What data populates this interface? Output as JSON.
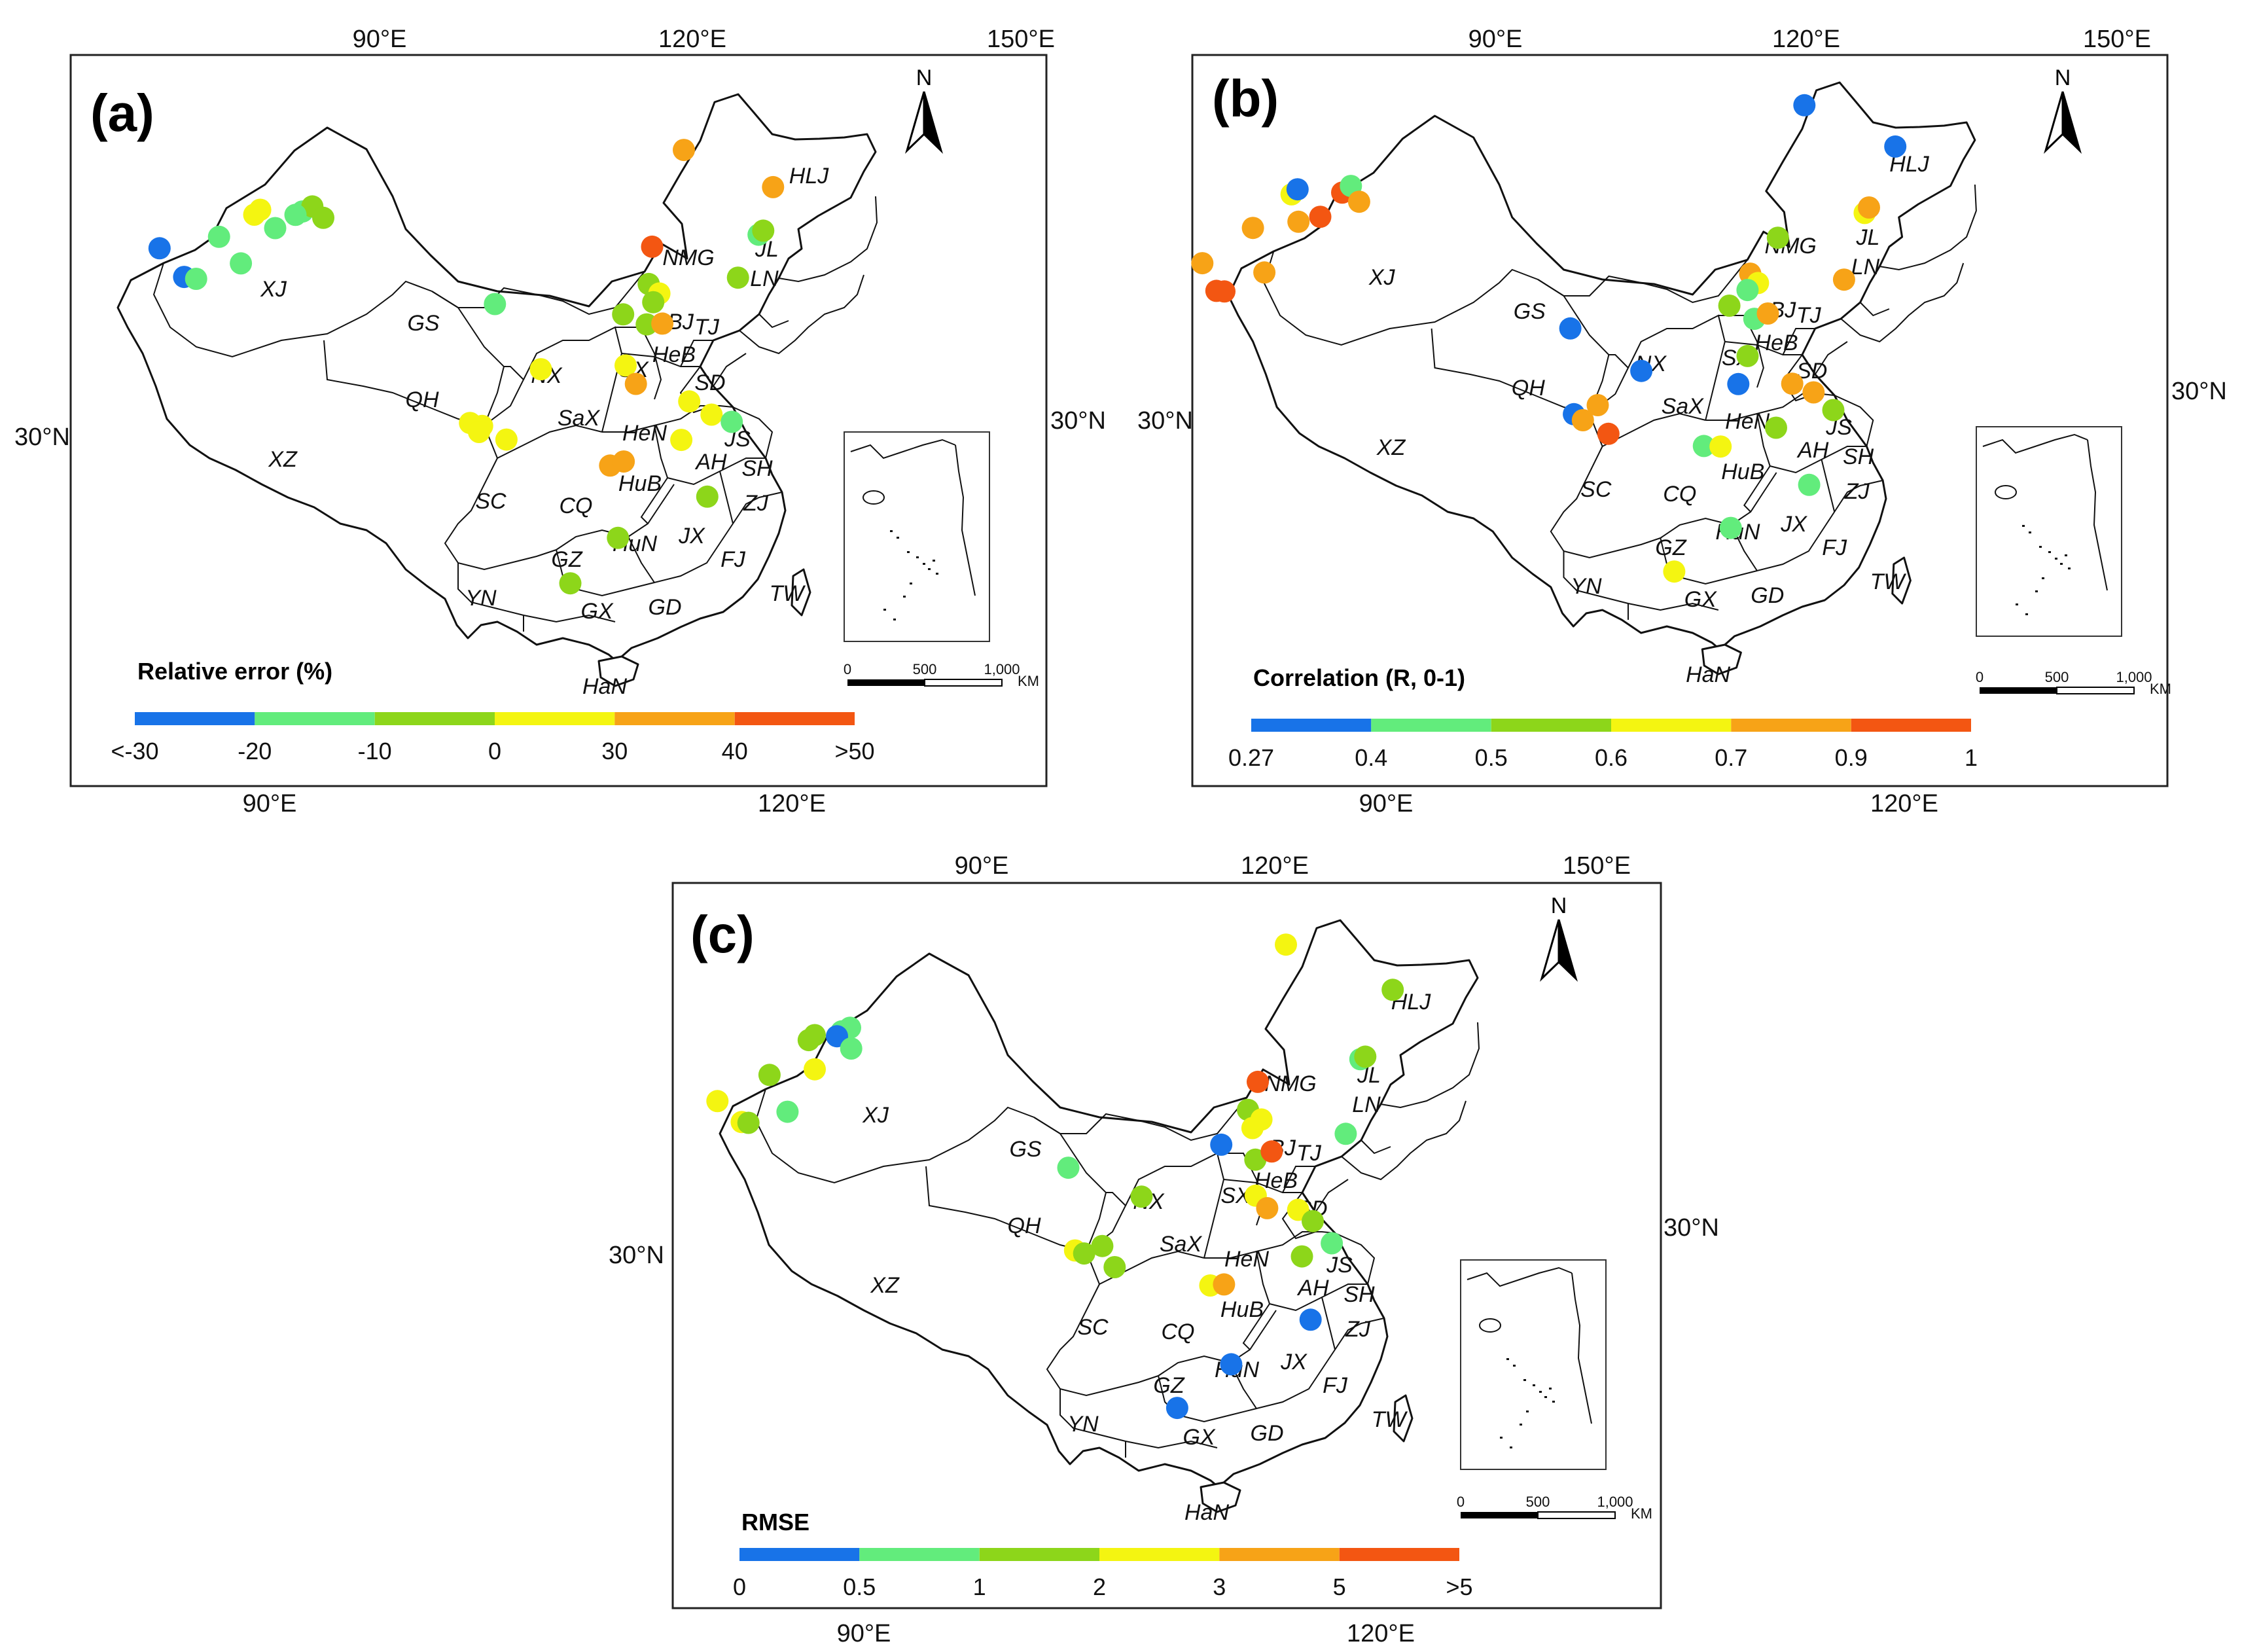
{
  "panels": [
    {
      "id": "a",
      "label": "(a)",
      "top_ticks": [
        "90°E",
        "120°E",
        "150°E"
      ],
      "bottom_ticks": [
        "90°E",
        "120°E"
      ],
      "lat_left": "30°N",
      "lat_right": "30°N",
      "north": "N",
      "legend_title": "Relative error (%)",
      "legend_ticks": [
        "<-30",
        "-20",
        "-10",
        "0",
        "30",
        "40",
        ">50"
      ],
      "scale_labels": [
        "0",
        "500",
        "1,000",
        "KM"
      ],
      "provinces": [
        "XJ",
        "GS",
        "NX",
        "QH",
        "XZ",
        "NMG",
        "HLJ",
        "JL",
        "LN",
        "BJ",
        "TJ",
        "HeB",
        "SX",
        "SD",
        "SaX",
        "HeN",
        "JS",
        "AH",
        "SH",
        "HuB",
        "SC",
        "CQ",
        "ZJ",
        "JX",
        "HuN",
        "GZ",
        "FJ",
        "YN",
        "GX",
        "GD",
        "TW",
        "HaN"
      ],
      "stations": [
        {
          "lon": 81.2,
          "lat": 43.3,
          "class": 0
        },
        {
          "lon": 83.4,
          "lat": 41.2,
          "class": 0
        },
        {
          "lon": 84.3,
          "lat": 41.0,
          "class": 1
        },
        {
          "lon": 85.5,
          "lat": 43.7,
          "class": 1
        },
        {
          "lon": 87.4,
          "lat": 41.8,
          "class": 1
        },
        {
          "lon": 87.9,
          "lat": 45.0,
          "class": 3
        },
        {
          "lon": 88.3,
          "lat": 45.3,
          "class": 3
        },
        {
          "lon": 89.6,
          "lat": 44.0,
          "class": 1
        },
        {
          "lon": 91.5,
          "lat": 45.0,
          "class": 1
        },
        {
          "lon": 92.2,
          "lat": 45.3,
          "class": 2
        },
        {
          "lon": 93.1,
          "lat": 44.5,
          "class": 2
        },
        {
          "lon": 91.0,
          "lat": 44.8,
          "class": 1
        },
        {
          "lon": 105.8,
          "lat": 38.5,
          "class": 1
        },
        {
          "lon": 120.5,
          "lat": 49.2,
          "class": 4
        },
        {
          "lon": 127.0,
          "lat": 47.2,
          "class": 4
        },
        {
          "lon": 125.3,
          "lat": 43.9,
          "class": 1
        },
        {
          "lon": 125.7,
          "lat": 44.2,
          "class": 2
        },
        {
          "lon": 117.3,
          "lat": 42.6,
          "class": 5
        },
        {
          "lon": 116.8,
          "lat": 40.1,
          "class": 2
        },
        {
          "lon": 117.5,
          "lat": 39.5,
          "class": 3
        },
        {
          "lon": 117.0,
          "lat": 38.9,
          "class": 2
        },
        {
          "lon": 114.8,
          "lat": 38.0,
          "class": 2
        },
        {
          "lon": 116.4,
          "lat": 37.4,
          "class": 2
        },
        {
          "lon": 117.5,
          "lat": 37.5,
          "class": 4
        },
        {
          "lon": 123.3,
          "lat": 40.9,
          "class": 2
        },
        {
          "lon": 108.9,
          "lat": 34.2,
          "class": 3
        },
        {
          "lon": 114.7,
          "lat": 34.6,
          "class": 3
        },
        {
          "lon": 115.3,
          "lat": 33.4,
          "class": 4
        },
        {
          "lon": 118.8,
          "lat": 32.4,
          "class": 3
        },
        {
          "lon": 120.2,
          "lat": 31.6,
          "class": 3
        },
        {
          "lon": 121.5,
          "lat": 31.2,
          "class": 1
        },
        {
          "lon": 104.1,
          "lat": 30.6,
          "class": 3
        },
        {
          "lon": 104.9,
          "lat": 30.4,
          "class": 3
        },
        {
          "lon": 104.7,
          "lat": 30.0,
          "class": 3
        },
        {
          "lon": 106.5,
          "lat": 29.5,
          "class": 3
        },
        {
          "lon": 118.0,
          "lat": 29.8,
          "class": 3
        },
        {
          "lon": 113.2,
          "lat": 27.9,
          "class": 4
        },
        {
          "lon": 114.1,
          "lat": 28.2,
          "class": 4
        },
        {
          "lon": 119.3,
          "lat": 26.1,
          "class": 2
        },
        {
          "lon": 113.4,
          "lat": 23.1,
          "class": 2
        },
        {
          "lon": 110.3,
          "lat": 20.0,
          "class": 2
        }
      ]
    },
    {
      "id": "b",
      "label": "(b)",
      "top_ticks": [
        "90°E",
        "120°E",
        "150°E"
      ],
      "bottom_ticks": [
        "90°E",
        "120°E"
      ],
      "lat_left": "30°N",
      "lat_right": "30°N",
      "north": "N",
      "legend_title": "Correlation (R, 0-1)",
      "legend_ticks": [
        "0.27",
        "0.4",
        "0.5",
        "0.6",
        "0.7",
        "0.9",
        "1"
      ],
      "scale_labels": [
        "0",
        "500",
        "1,000",
        "KM"
      ],
      "provinces": [
        "XJ",
        "GS",
        "NX",
        "QH",
        "XZ",
        "NMG",
        "HLJ",
        "JL",
        "LN",
        "BJ",
        "TJ",
        "HeB",
        "SX",
        "SD",
        "SaX",
        "HeN",
        "JS",
        "AH",
        "SH",
        "HuB",
        "SC",
        "CQ",
        "ZJ",
        "JX",
        "HuN",
        "GZ",
        "FJ",
        "YN",
        "GX",
        "GD",
        "TW",
        "HaN"
      ],
      "stations": [
        {
          "lon": 76.5,
          "lat": 42.0,
          "class": 4
        },
        {
          "lon": 78.0,
          "lat": 40.0,
          "class": 5
        },
        {
          "lon": 78.6,
          "lat": 39.9,
          "class": 5
        },
        {
          "lon": 79.8,
          "lat": 44.0,
          "class": 4
        },
        {
          "lon": 81.3,
          "lat": 40.9,
          "class": 4
        },
        {
          "lon": 82.3,
          "lat": 46.0,
          "class": 3
        },
        {
          "lon": 82.7,
          "lat": 46.3,
          "class": 0
        },
        {
          "lon": 83.2,
          "lat": 44.1,
          "class": 4
        },
        {
          "lon": 84.8,
          "lat": 44.3,
          "class": 5
        },
        {
          "lon": 86.2,
          "lat": 45.8,
          "class": 5
        },
        {
          "lon": 86.8,
          "lat": 46.2,
          "class": 1
        },
        {
          "lon": 87.6,
          "lat": 45.1,
          "class": 4
        },
        {
          "lon": 103.7,
          "lat": 36.1,
          "class": 0
        },
        {
          "lon": 122.3,
          "lat": 51.5,
          "class": 0
        },
        {
          "lon": 129.1,
          "lat": 49.3,
          "class": 0
        },
        {
          "lon": 125.8,
          "lat": 44.6,
          "class": 3
        },
        {
          "lon": 126.2,
          "lat": 45.0,
          "class": 4
        },
        {
          "lon": 119.0,
          "lat": 42.5,
          "class": 2
        },
        {
          "lon": 116.7,
          "lat": 40.0,
          "class": 4
        },
        {
          "lon": 117.2,
          "lat": 39.4,
          "class": 3
        },
        {
          "lon": 116.4,
          "lat": 38.9,
          "class": 1
        },
        {
          "lon": 115.0,
          "lat": 37.8,
          "class": 2
        },
        {
          "lon": 116.7,
          "lat": 37.0,
          "class": 1
        },
        {
          "lon": 117.7,
          "lat": 37.4,
          "class": 4
        },
        {
          "lon": 123.5,
          "lat": 40.0,
          "class": 4
        },
        {
          "lon": 116.0,
          "lat": 34.5,
          "class": 2
        },
        {
          "lon": 108.6,
          "lat": 33.3,
          "class": 0
        },
        {
          "lon": 115.2,
          "lat": 32.6,
          "class": 0
        },
        {
          "lon": 118.9,
          "lat": 32.8,
          "class": 4
        },
        {
          "lon": 120.3,
          "lat": 32.3,
          "class": 4
        },
        {
          "lon": 121.5,
          "lat": 31.2,
          "class": 2
        },
        {
          "lon": 104.0,
          "lat": 30.4,
          "class": 0
        },
        {
          "lon": 104.6,
          "lat": 30.0,
          "class": 4
        },
        {
          "lon": 105.6,
          "lat": 31.0,
          "class": 4
        },
        {
          "lon": 106.3,
          "lat": 29.1,
          "class": 5
        },
        {
          "lon": 117.5,
          "lat": 29.8,
          "class": 2
        },
        {
          "lon": 112.6,
          "lat": 28.4,
          "class": 1
        },
        {
          "lon": 113.7,
          "lat": 28.4,
          "class": 3
        },
        {
          "lon": 119.3,
          "lat": 26.1,
          "class": 1
        },
        {
          "lon": 114.0,
          "lat": 23.0,
          "class": 1
        },
        {
          "lon": 110.3,
          "lat": 20.0,
          "class": 3
        }
      ]
    },
    {
      "id": "c",
      "label": "(c)",
      "top_ticks": [
        "90°E",
        "120°E",
        "150°E"
      ],
      "bottom_ticks": [
        "90°E",
        "120°E"
      ],
      "lat_left": "30°N",
      "lat_right": "30°N",
      "north": "N",
      "legend_title": "RMSE",
      "legend_ticks": [
        "0",
        "0.5",
        "1",
        "2",
        "3",
        "5",
        ">5"
      ],
      "scale_labels": [
        "0",
        "500",
        "1,000",
        "KM"
      ],
      "provinces": [
        "XJ",
        "GS",
        "NX",
        "QH",
        "XZ",
        "NMG",
        "HLJ",
        "JL",
        "LN",
        "BJ",
        "TJ",
        "HeB",
        "SX",
        "SD",
        "SaX",
        "HeN",
        "JS",
        "AH",
        "SH",
        "HuB",
        "SC",
        "CQ",
        "ZJ",
        "JX",
        "HuN",
        "GZ",
        "FJ",
        "YN",
        "GX",
        "GD",
        "TW",
        "HaN"
      ],
      "stations": [
        {
          "lon": 78.3,
          "lat": 41.8,
          "class": 3
        },
        {
          "lon": 80.4,
          "lat": 40.2,
          "class": 3
        },
        {
          "lon": 80.9,
          "lat": 40.1,
          "class": 2
        },
        {
          "lon": 81.8,
          "lat": 43.2,
          "class": 2
        },
        {
          "lon": 83.6,
          "lat": 40.6,
          "class": 1
        },
        {
          "lon": 84.3,
          "lat": 45.3,
          "class": 2
        },
        {
          "lon": 84.7,
          "lat": 45.6,
          "class": 2
        },
        {
          "lon": 85.1,
          "lat": 43.3,
          "class": 3
        },
        {
          "lon": 86.7,
          "lat": 45.7,
          "class": 1
        },
        {
          "lon": 87.3,
          "lat": 45.9,
          "class": 1
        },
        {
          "lon": 86.4,
          "lat": 45.4,
          "class": 0
        },
        {
          "lon": 87.6,
          "lat": 44.5,
          "class": 1
        },
        {
          "lon": 103.8,
          "lat": 36.0,
          "class": 1
        },
        {
          "lon": 120.8,
          "lat": 51.3,
          "class": 3
        },
        {
          "lon": 128.7,
          "lat": 48.9,
          "class": 2
        },
        {
          "lon": 125.3,
          "lat": 44.0,
          "class": 1
        },
        {
          "lon": 125.7,
          "lat": 44.2,
          "class": 2
        },
        {
          "lon": 117.5,
          "lat": 42.0,
          "class": 5
        },
        {
          "lon": 116.6,
          "lat": 40.1,
          "class": 2
        },
        {
          "lon": 117.5,
          "lat": 39.5,
          "class": 3
        },
        {
          "lon": 116.8,
          "lat": 38.9,
          "class": 3
        },
        {
          "lon": 114.5,
          "lat": 37.7,
          "class": 0
        },
        {
          "lon": 116.8,
          "lat": 36.8,
          "class": 2
        },
        {
          "lon": 118.0,
          "lat": 37.4,
          "class": 5
        },
        {
          "lon": 123.4,
          "lat": 38.9,
          "class": 1
        },
        {
          "lon": 108.8,
          "lat": 34.1,
          "class": 2
        },
        {
          "lon": 116.6,
          "lat": 34.4,
          "class": 3
        },
        {
          "lon": 117.3,
          "lat": 33.6,
          "class": 4
        },
        {
          "lon": 119.4,
          "lat": 33.6,
          "class": 3
        },
        {
          "lon": 120.3,
          "lat": 32.9,
          "class": 2
        },
        {
          "lon": 121.4,
          "lat": 31.5,
          "class": 1
        },
        {
          "lon": 104.3,
          "lat": 30.5,
          "class": 3
        },
        {
          "lon": 104.9,
          "lat": 30.3,
          "class": 2
        },
        {
          "lon": 106.1,
          "lat": 30.8,
          "class": 2
        },
        {
          "lon": 106.9,
          "lat": 29.4,
          "class": 2
        },
        {
          "lon": 119.3,
          "lat": 30.5,
          "class": 2
        },
        {
          "lon": 113.1,
          "lat": 28.3,
          "class": 3
        },
        {
          "lon": 114.0,
          "lat": 28.4,
          "class": 4
        },
        {
          "lon": 119.4,
          "lat": 26.3,
          "class": 0
        },
        {
          "lon": 114.1,
          "lat": 23.1,
          "class": 0
        },
        {
          "lon": 110.6,
          "lat": 20.1,
          "class": 0
        }
      ]
    }
  ],
  "colors": {
    "classes": [
      "#1873e8",
      "#62ec7c",
      "#8dd61a",
      "#f4f511",
      "#f7a317",
      "#f35612"
    ],
    "frame": "#222222"
  }
}
